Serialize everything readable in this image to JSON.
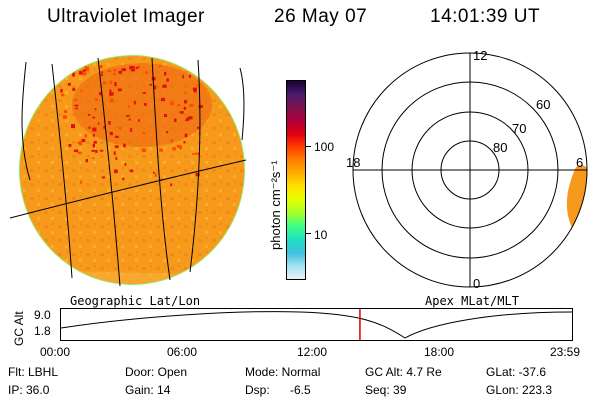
{
  "header": {
    "title": "Ultraviolet Imager",
    "date": "26 May 07",
    "time": "14:01:39 UT"
  },
  "colorbar": {
    "label": "photon cm⁻²s⁻¹",
    "ticks": [
      "100",
      "10"
    ],
    "colors": [
      "#1a0033",
      "#4b1a6e",
      "#7a1450",
      "#b0003c",
      "#e00010",
      "#ff3a00",
      "#ff8000",
      "#ffb000",
      "#ffe000",
      "#e6ff00",
      "#a0ff30",
      "#40ff80",
      "#20e0c0",
      "#40c0e0",
      "#a0e0f0",
      "#e8f4f8"
    ]
  },
  "geo_map": {
    "label": "Geographic Lat/Lon"
  },
  "polar_map": {
    "label": "Apex MLat/MLT",
    "mlt_labels": {
      "top": "12",
      "left": "18",
      "right": "6",
      "bottom": "0"
    },
    "lat_labels": [
      "60",
      "70",
      "80"
    ]
  },
  "altitude_plot": {
    "ylabel": "GC Alt",
    "yticks": [
      "9.0",
      "1.8"
    ],
    "xticks": [
      "00:00",
      "06:00",
      "12:00",
      "18:00",
      "23:59"
    ],
    "current_time_fraction": 0.585
  },
  "status": {
    "filter": "Flt: LBHL",
    "ip": "IP: 36.0",
    "door": "Door: Open",
    "gain": "Gain: 14",
    "mode": "Mode: Normal",
    "dsp_label": "Dsp:",
    "dsp_value": "-6.5",
    "gc_alt": "GC Alt: 4.7 Re",
    "seq": "Seq: 39",
    "glat": "GLat: -37.6",
    "glon": "GLon: 223.3"
  }
}
